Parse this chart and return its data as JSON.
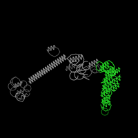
{
  "background_color": "#000000",
  "figure_width": 2.0,
  "figure_height": 2.0,
  "dpi": 100,
  "gray_color": "#909090",
  "gray_dark": "#606060",
  "gray_light": "#b0b0b0",
  "green_color": "#22cc22",
  "green_dark": "#118811",
  "green_light": "#44ee44"
}
